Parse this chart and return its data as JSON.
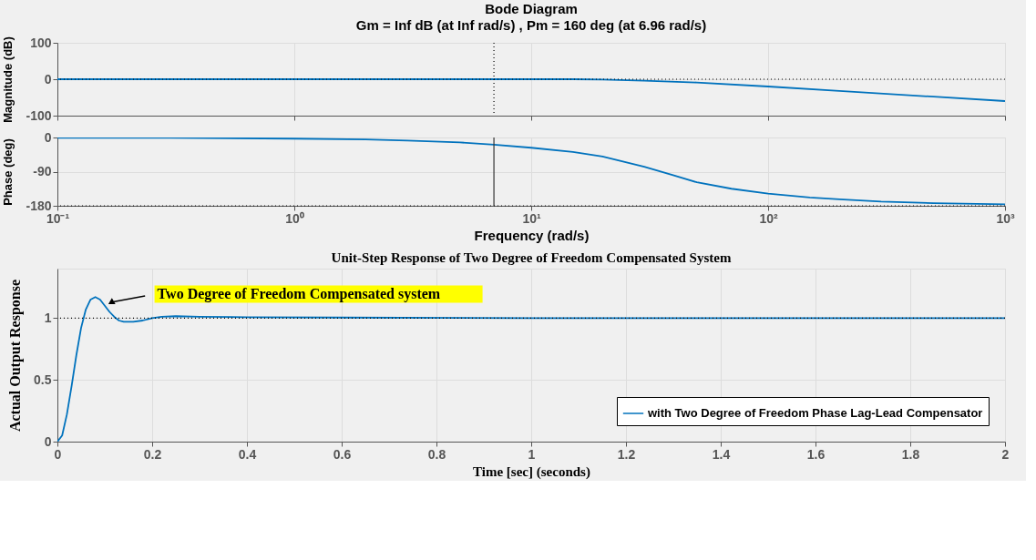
{
  "chart_data": [
    {
      "type": "line",
      "title": "Bode Diagram",
      "subtitle": "Gm = Inf dB (at Inf rad/s) ,  Pm = 160 deg (at 6.96 rad/s)",
      "ylabel": "Magnitude (dB)",
      "log": "x",
      "grid": true,
      "tick_labels": "y",
      "xlim": [
        0.1,
        1000
      ],
      "xticks": [
        0.1,
        1,
        10,
        100,
        1000
      ],
      "ylim": [
        -100,
        100
      ],
      "yticks": [
        -100,
        0,
        100
      ],
      "series": [
        {
          "color": "#0072bd",
          "x": [
            0.1,
            1,
            3,
            6.96,
            10,
            15,
            20,
            30,
            50,
            100,
            200,
            500,
            1000
          ],
          "values": [
            0,
            0,
            0,
            0,
            0,
            0,
            -1,
            -4,
            -9,
            -20,
            -32,
            -48,
            -60
          ]
        }
      ],
      "ref_lines": [
        {
          "axis": "x",
          "value": 6.96,
          "color": "#000000",
          "line_style": "dotted"
        },
        {
          "axis": "y",
          "value": 0,
          "color": "#000000",
          "line_style": "dotted"
        }
      ]
    },
    {
      "type": "line",
      "xlabel": "Frequency  (rad/s)",
      "ylabel": "Phase (deg)",
      "log": "x",
      "grid": true,
      "xlim": [
        0.1,
        1000
      ],
      "xticks": [
        {
          "value": 0.1,
          "label": "10⁻¹"
        },
        {
          "value": 1,
          "label": "10⁰"
        },
        {
          "value": 10,
          "label": "10¹"
        },
        {
          "value": 100,
          "label": "10²"
        },
        {
          "value": 1000,
          "label": "10³"
        }
      ],
      "ylim": [
        -180,
        0
      ],
      "yticks": [
        -180,
        -90,
        0
      ],
      "series": [
        {
          "color": "#0072bd",
          "x": [
            0.1,
            0.3,
            1,
            2,
            3,
            5,
            6.96,
            10,
            15,
            20,
            30,
            40,
            50,
            70,
            100,
            150,
            200,
            300,
            500,
            1000
          ],
          "values": [
            -1,
            -1,
            -3,
            -5,
            -8,
            -13,
            -19,
            -27,
            -38,
            -50,
            -77,
            -100,
            -118,
            -135,
            -148,
            -158,
            -163,
            -169,
            -173,
            -176
          ]
        }
      ],
      "ref_lines": [
        {
          "axis": "x",
          "value": 6.96,
          "color": "#333333",
          "line_style": "solid"
        },
        {
          "axis": "y",
          "value": -180,
          "color": "#000000",
          "line_style": "dotted"
        }
      ]
    },
    {
      "type": "line",
      "title": "Unit-Step Response of Two Degree of Freedom Compensated System",
      "xlabel": "Time [sec]  (seconds)",
      "ylabel": "Actual Output Response",
      "grid": true,
      "legend": "bottom right",
      "xlim": [
        0,
        2
      ],
      "xticks": [
        0,
        0.2,
        0.4,
        0.6,
        0.8,
        1,
        1.2,
        1.4,
        1.6,
        1.8,
        2
      ],
      "ylim": [
        0,
        1.4
      ],
      "yticks": [
        0,
        0.5,
        1
      ],
      "series": [
        {
          "name": "with Two Degree of Freedom Phase Lag-Lead Compensator",
          "color": "#0072bd",
          "x": [
            0,
            0.01,
            0.02,
            0.03,
            0.04,
            0.05,
            0.06,
            0.07,
            0.08,
            0.09,
            0.1,
            0.11,
            0.12,
            0.13,
            0.14,
            0.16,
            0.18,
            0.2,
            0.22,
            0.25,
            0.3,
            0.4,
            0.6,
            1,
            1.5,
            2
          ],
          "values": [
            0,
            0.05,
            0.22,
            0.45,
            0.7,
            0.92,
            1.07,
            1.15,
            1.17,
            1.15,
            1.1,
            1.05,
            1.01,
            0.98,
            0.97,
            0.97,
            0.98,
            1.0,
            1.01,
            1.015,
            1.01,
            1.007,
            1.004,
            1.0,
            1.0,
            1.0
          ]
        }
      ],
      "ref_lines": [
        {
          "axis": "y",
          "value": 1,
          "color": "#000000",
          "line_style": "dotted"
        }
      ],
      "annotations": [
        {
          "text": "Two Degree of Freedom Compensated system",
          "x": 0.115,
          "y": 1.13
        }
      ]
    }
  ]
}
